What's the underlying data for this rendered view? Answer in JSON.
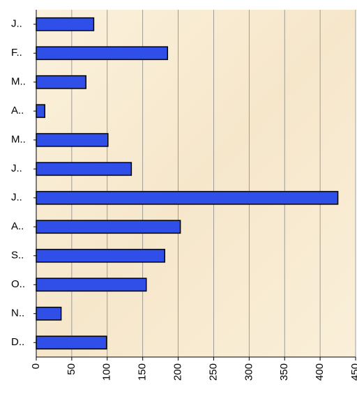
{
  "chart_data": {
    "type": "bar",
    "orientation": "horizontal",
    "categories": [
      "J..",
      "F..",
      "M..",
      "A..",
      "M..",
      "J..",
      "J..",
      "A..",
      "S..",
      "O..",
      "N..",
      "D.."
    ],
    "values": [
      81,
      185,
      70,
      12,
      101,
      134,
      425,
      203,
      181,
      155,
      35,
      99
    ],
    "color": "#2f4fe8",
    "xlim": [
      0,
      450
    ],
    "xticks": [
      0,
      50,
      100,
      150,
      200,
      250,
      300,
      350,
      400,
      450
    ],
    "grid": true
  }
}
